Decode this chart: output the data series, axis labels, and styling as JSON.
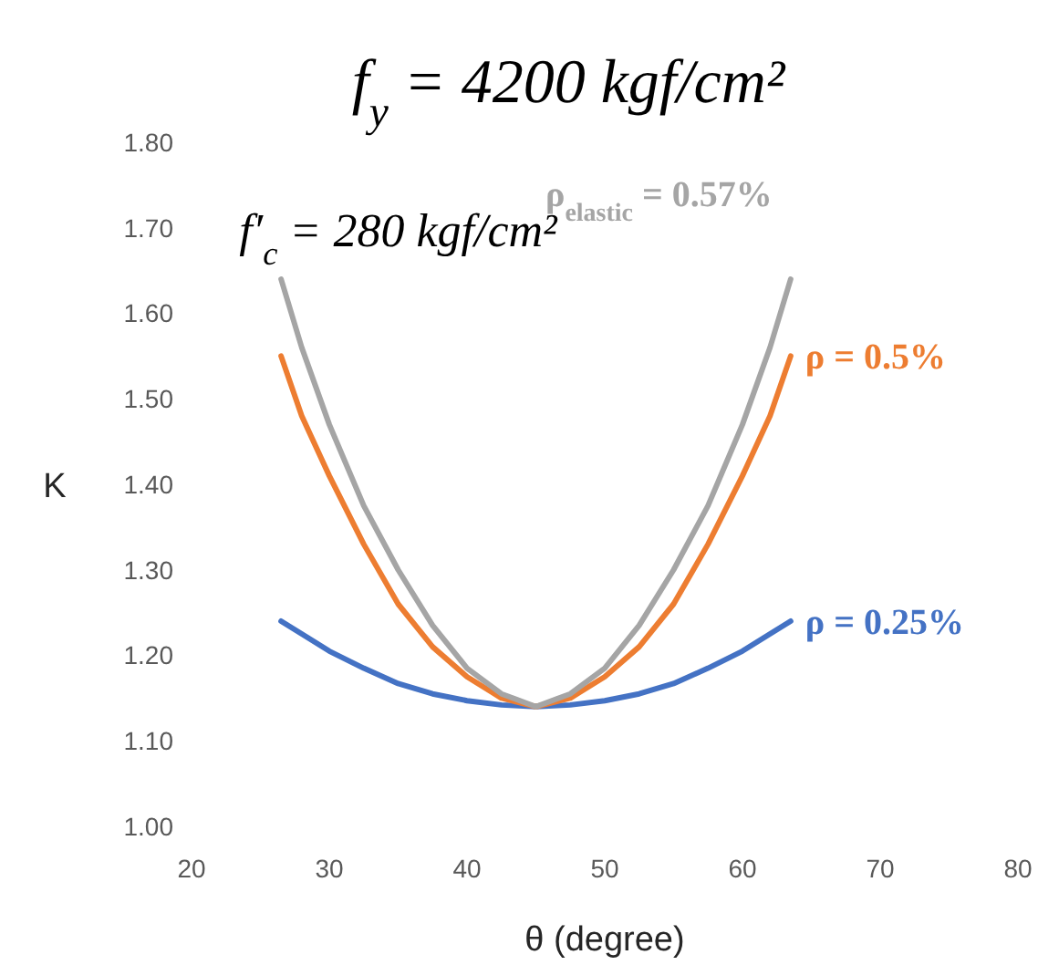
{
  "chart_data": {
    "type": "line",
    "title": "f$_{y}$ = 4200 kgf/cm²",
    "subtitle": "f′$_{c}$ = 280 kgf/cm²",
    "xlabel": "θ (degree)",
    "ylabel": "K",
    "x": [
      26.5,
      28,
      30,
      32.5,
      35,
      37.5,
      40,
      42.5,
      45,
      47.5,
      50,
      52.5,
      55,
      57.5,
      60,
      62,
      63.5
    ],
    "series": [
      {
        "name": "ρ = 0.25%",
        "color": "#4472c4",
        "values": [
          1.24,
          1.225,
          1.205,
          1.185,
          1.167,
          1.155,
          1.147,
          1.142,
          1.14,
          1.142,
          1.147,
          1.155,
          1.167,
          1.185,
          1.205,
          1.225,
          1.24
        ]
      },
      {
        "name": "ρ = 0.5%",
        "color": "#ed7d31",
        "values": [
          1.55,
          1.48,
          1.41,
          1.33,
          1.26,
          1.21,
          1.175,
          1.15,
          1.14,
          1.15,
          1.175,
          1.21,
          1.26,
          1.33,
          1.41,
          1.48,
          1.55
        ]
      },
      {
        "name": "ρ$_{elastic}$ = 0.57%",
        "color": "#a5a5a5",
        "values": [
          1.64,
          1.56,
          1.47,
          1.375,
          1.3,
          1.235,
          1.185,
          1.155,
          1.14,
          1.155,
          1.185,
          1.235,
          1.3,
          1.375,
          1.47,
          1.56,
          1.64
        ]
      }
    ],
    "xlim": [
      20,
      80
    ],
    "xticks": [
      20,
      30,
      40,
      50,
      60,
      70,
      80
    ],
    "ylim": [
      1.0,
      1.8
    ],
    "yticks": [
      {
        "value": 1.0,
        "label": "1.00"
      },
      {
        "value": 1.1,
        "label": "1.10"
      },
      {
        "value": 1.2,
        "label": "1.20"
      },
      {
        "value": 1.3,
        "label": "1.30"
      },
      {
        "value": 1.4,
        "label": "1.40"
      },
      {
        "value": 1.5,
        "label": "1.50"
      },
      {
        "value": 1.6,
        "label": "1.60"
      },
      {
        "value": 1.7,
        "label": "1.70"
      },
      {
        "value": 1.8,
        "label": "1.80"
      }
    ],
    "grid": false,
    "marker": "none",
    "line_style": "solid"
  }
}
